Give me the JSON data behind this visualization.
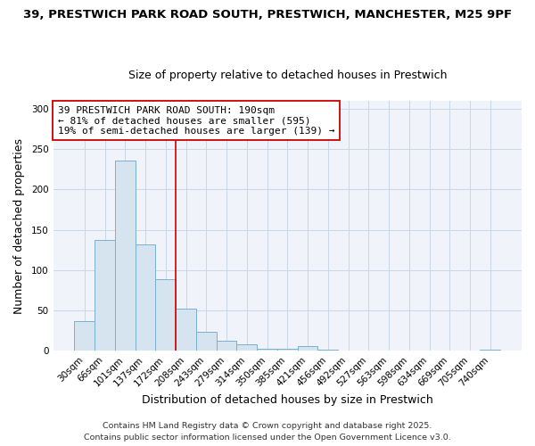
{
  "title_line1": "39, PRESTWICH PARK ROAD SOUTH, PRESTWICH, MANCHESTER, M25 9PF",
  "title_line2": "Size of property relative to detached houses in Prestwich",
  "xlabel": "Distribution of detached houses by size in Prestwich",
  "ylabel": "Number of detached properties",
  "categories": [
    "30sqm",
    "66sqm",
    "101sqm",
    "137sqm",
    "172sqm",
    "208sqm",
    "243sqm",
    "279sqm",
    "314sqm",
    "350sqm",
    "385sqm",
    "421sqm",
    "456sqm",
    "492sqm",
    "527sqm",
    "563sqm",
    "598sqm",
    "634sqm",
    "669sqm",
    "705sqm",
    "740sqm"
  ],
  "values": [
    37,
    138,
    236,
    132,
    89,
    52,
    24,
    13,
    8,
    3,
    3,
    6,
    1,
    0,
    0,
    0,
    0,
    0,
    0,
    0,
    1
  ],
  "bar_color": "#d6e4f0",
  "bar_edgecolor": "#7ab0d4",
  "bar_linewidth": 0.7,
  "vline_x": 4.5,
  "vline_color": "#cc0000",
  "vline_linewidth": 1.2,
  "annotation_text": "39 PRESTWICH PARK ROAD SOUTH: 190sqm\n← 81% of detached houses are smaller (595)\n19% of semi-detached houses are larger (139) →",
  "annotation_box_edgecolor": "#cc0000",
  "annotation_box_facecolor": "#ffffff",
  "footer_line1": "Contains HM Land Registry data © Crown copyright and database right 2025.",
  "footer_line2": "Contains public sector information licensed under the Open Government Licence v3.0.",
  "ylim": [
    0,
    310
  ],
  "fig_facecolor": "#ffffff",
  "plot_facecolor": "#f0f4fa",
  "grid_color": "#c8d8e8",
  "title_fontsize": 9.5,
  "subtitle_fontsize": 9,
  "axis_label_fontsize": 9,
  "tick_fontsize": 7.5,
  "annotation_fontsize": 8,
  "footer_fontsize": 6.8
}
